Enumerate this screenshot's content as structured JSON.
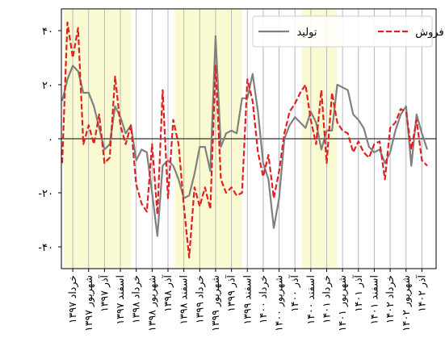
{
  "chart_data": {
    "type": "line",
    "title": "",
    "xlabel": "",
    "ylabel": "",
    "ylim": [
      -48,
      46
    ],
    "grid": "vertical",
    "legend_position": "top-right",
    "y_ticks": [
      {
        "value": 40,
        "label": "۴۰"
      },
      {
        "value": 20,
        "label": "۲۰"
      },
      {
        "value": 0,
        "label": "۰"
      },
      {
        "value": -20,
        "label": "-۲۰"
      },
      {
        "value": -40,
        "label": "-۴۰"
      }
    ],
    "x_tick_labels": [
      "خرداد ۱۳۹۷",
      "شهریور ۱۳۹۷",
      "آذر ۱۳۹۷",
      "اسفند ۱۳۹۷",
      "خرداد ۱۳۹۸",
      "شهریور ۱۳۹۸",
      "آذر ۱۳۹۸",
      "اسفند ۱۳۹۸",
      "خرداد ۱۳۹۹",
      "شهریور ۱۳۹۹",
      "آذر ۱۳۹۹",
      "اسفند ۱۳۹۹",
      "خرداد ۱۴۰۰",
      "شهریور ۱۴۰۰",
      "آذر ۱۴۰۰",
      "اسفند ۱۴۰۰",
      "خرداد ۱۴۰۱",
      "شهریور ۱۴۰۱",
      "آذر ۱۴۰۱",
      "اسفند ۱۴۰۱",
      "خرداد ۱۴۰۲",
      "شهریور ۱۴۰۲",
      "آذر ۱۴۰۲"
    ],
    "shaded_periods": [
      [
        "خرداد ۱۳۹۷",
        "اسفند ۱۳۹۷"
      ],
      [
        "اسفند ۱۳۹۸",
        "آذر ۱۳۹۹"
      ],
      [
        "اسفند ۱۴۰۰",
        "خرداد ۱۴۰۱"
      ]
    ],
    "shade_color": "#fafad2",
    "series": [
      {
        "name": "تولید",
        "color": "#808080",
        "style": "solid",
        "values": [
          14,
          22,
          27,
          25,
          17,
          17,
          12,
          4,
          -4,
          -2,
          12,
          8,
          2,
          5,
          -8,
          -4,
          -5,
          -20,
          -36,
          -10,
          -8,
          -10,
          -15,
          -22,
          -21,
          -13,
          -3,
          -3,
          -12,
          38,
          -3,
          2,
          3,
          2,
          15,
          15,
          24,
          10,
          -9,
          -15,
          -33,
          -22,
          0,
          5,
          8,
          6,
          4,
          10,
          6,
          -4,
          3,
          3,
          20,
          19,
          18,
          9,
          7,
          4,
          -3,
          -5,
          -4,
          -9,
          -5,
          3,
          9,
          12,
          -10,
          9,
          2,
          -4
        ]
      },
      {
        "name": "فروش",
        "color": "#dd2222",
        "style": "dashed",
        "values": [
          -9,
          43,
          30,
          41,
          -2,
          5,
          -2,
          9,
          -9,
          -7,
          23,
          5,
          -2,
          5,
          -17,
          -24,
          -27,
          -2,
          -28,
          18,
          -22,
          7,
          -2,
          -25,
          -44,
          -18,
          -25,
          -18,
          -26,
          27,
          -15,
          -20,
          -18,
          -21,
          -20,
          22,
          14,
          -5,
          -14,
          -6,
          -22,
          -12,
          2,
          10,
          13,
          17,
          20,
          7,
          -2,
          18,
          -9,
          17,
          6,
          3,
          2,
          -5,
          -1,
          -5,
          -7,
          -2,
          -1,
          -15,
          4,
          6,
          11,
          10,
          -4,
          7,
          -8,
          -10
        ]
      }
    ]
  }
}
